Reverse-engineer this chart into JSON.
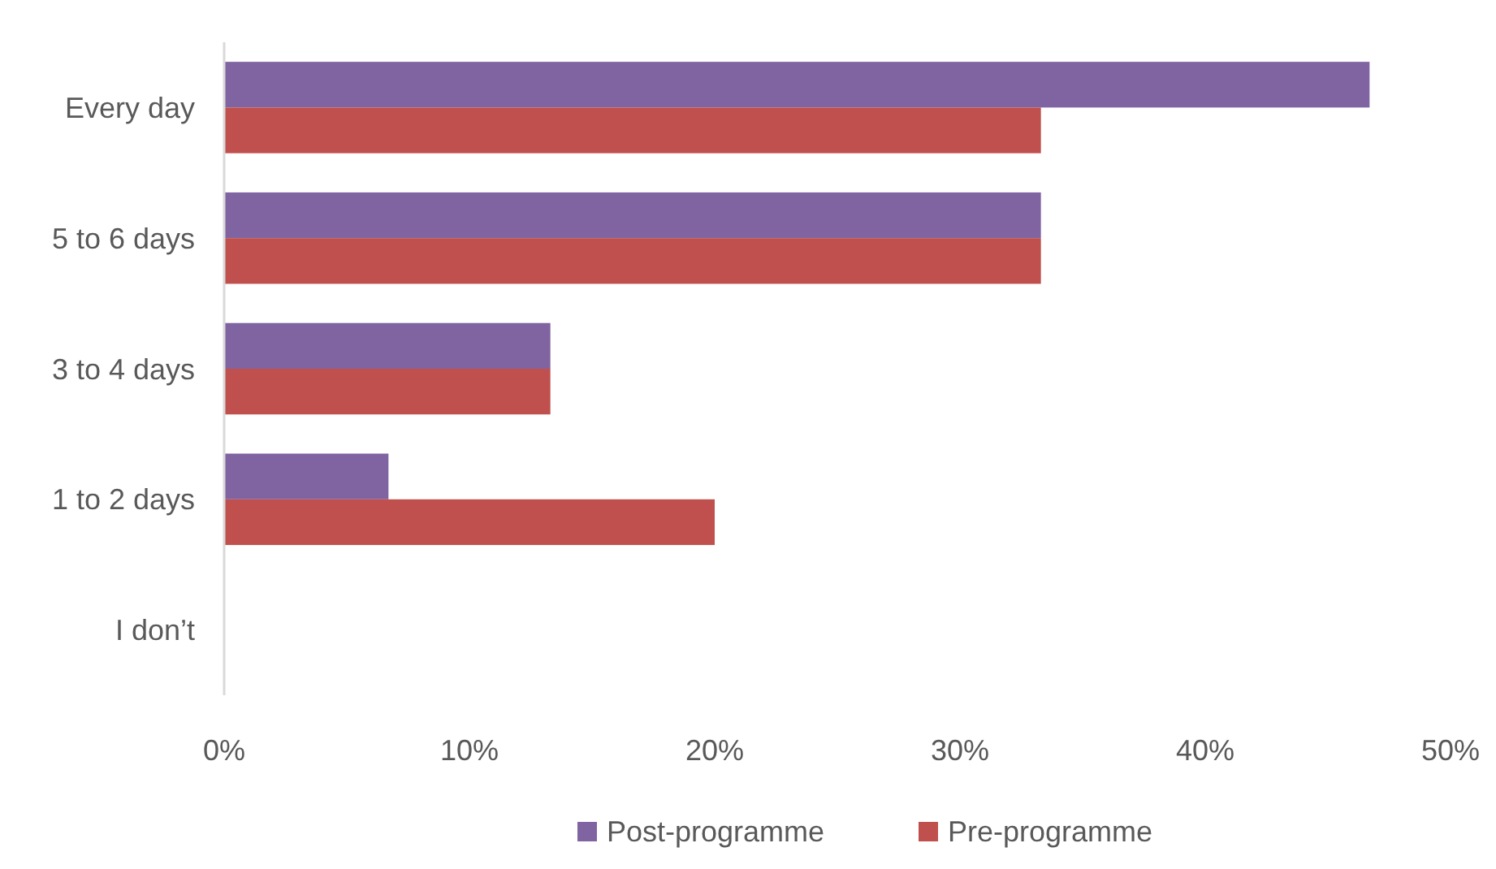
{
  "chart_data": {
    "type": "bar",
    "orientation": "horizontal",
    "categories": [
      "Every day",
      "5 to 6 days",
      "3 to 4 days",
      "1 to 2 days",
      "I don’t"
    ],
    "series": [
      {
        "name": "Post-programme",
        "color": "#8064a2",
        "values": [
          46.7,
          33.3,
          13.3,
          6.7,
          0
        ]
      },
      {
        "name": "Pre-programme",
        "color": "#c0504d",
        "values": [
          33.3,
          33.3,
          13.3,
          20,
          0
        ]
      }
    ],
    "xlim": [
      0,
      50
    ],
    "xticks": [
      {
        "value": 0,
        "label": "0%"
      },
      {
        "value": 10,
        "label": "10%"
      },
      {
        "value": 20,
        "label": "20%"
      },
      {
        "value": 30,
        "label": "30%"
      },
      {
        "value": 40,
        "label": "40%"
      },
      {
        "value": 50,
        "label": "50%"
      }
    ],
    "grid": false,
    "legend": "bottom"
  }
}
